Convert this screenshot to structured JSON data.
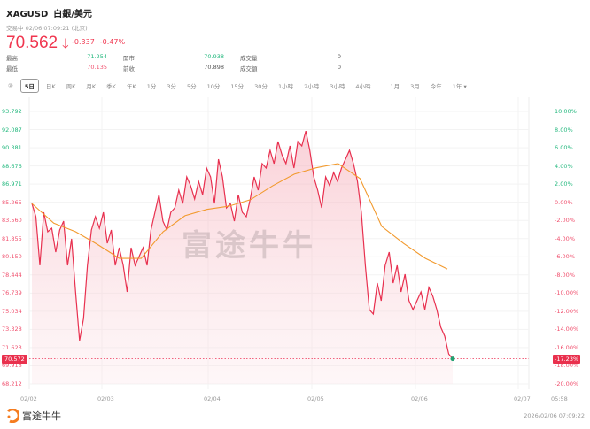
{
  "header": {
    "symbol": "XAGUSD",
    "name": "白銀/美元",
    "status": "交易中 02/06 07:09:21 (北京)",
    "price": "70.562",
    "arrow_icon": "arrow-down",
    "change": "-0.337",
    "change_pct": "-0.47%"
  },
  "stats": [
    {
      "label": "最高",
      "value": "71.254",
      "color": "green"
    },
    {
      "label": "開市",
      "value": "70.938",
      "color": "green"
    },
    {
      "label": "成交量",
      "value": "0",
      "color": "grey"
    },
    {
      "label": "最低",
      "value": "70.135",
      "color": "red"
    },
    {
      "label": "前收",
      "value": "70.898",
      "color": "grey"
    },
    {
      "label": "成交額",
      "value": "0",
      "color": "grey"
    }
  ],
  "tabs": [
    "⑩",
    "5日",
    "日K",
    "周K",
    "月K",
    "季K",
    "年K",
    "1分",
    "3分",
    "5分",
    "10分",
    "15分",
    "30分",
    "1小時",
    "2小時",
    "3小時",
    "4小時",
    "1月",
    "3月",
    "今年",
    "1年 ▾"
  ],
  "active_tab": "5日",
  "colors": {
    "up": "#20b77c",
    "down": "#f0506e",
    "line": "#e8304f",
    "ma": "#f29a2e"
  },
  "chart_data": {
    "type": "line",
    "y_ticks": [
      "93.792",
      "92.087",
      "90.381",
      "88.676",
      "86.971",
      "85.265",
      "83.560",
      "81.855",
      "80.150",
      "78.444",
      "76.739",
      "75.034",
      "73.328",
      "71.623",
      "69.918",
      "68.212"
    ],
    "pct_ticks": [
      "10.00%",
      "8.00%",
      "6.00%",
      "4.00%",
      "2.00%",
      "0.00%",
      "-2.00%",
      "-4.00%",
      "-6.00%",
      "-8.00%",
      "-10.00%",
      "-12.00%",
      "-14.00%",
      "-16.00%",
      "-18.00%",
      "-20.00%"
    ],
    "ylim": [
      68.212,
      93.792
    ],
    "x_ticks": [
      "02/02",
      "02/03",
      "02/04",
      "02/05",
      "02/06",
      "02/07",
      "05:58"
    ],
    "prev_close": 85.265,
    "current_price_label": "70.572",
    "current_pct_label": "-17.23%",
    "price_series": [
      85.15,
      83.91,
      79.34,
      84.32,
      82.5,
      82.83,
      80.59,
      82.66,
      83.49,
      79.34,
      81.83,
      76.85,
      72.28,
      74.36,
      79.34,
      82.66,
      83.91,
      82.83,
      84.32,
      81.42,
      82.66,
      79.34,
      81.0,
      79.34,
      76.85,
      81.0,
      79.34,
      80.17,
      81.0,
      79.34,
      82.66,
      84.32,
      85.98,
      83.49,
      82.66,
      84.32,
      84.74,
      86.4,
      85.15,
      87.65,
      86.82,
      85.57,
      87.23,
      85.98,
      88.48,
      87.65,
      85.15,
      89.31,
      87.65,
      84.74,
      85.15,
      83.49,
      85.98,
      84.32,
      83.91,
      85.57,
      87.65,
      86.4,
      88.89,
      88.48,
      90.14,
      88.89,
      90.97,
      89.72,
      88.89,
      90.55,
      88.48,
      90.97,
      90.55,
      91.96,
      90.14,
      87.65,
      86.4,
      84.74,
      87.65,
      86.82,
      88.06,
      87.23,
      88.48,
      89.31,
      90.14,
      88.89,
      87.23,
      84.32,
      79.34,
      75.19,
      74.77,
      77.68,
      76.02,
      79.34,
      80.59,
      77.68,
      79.34,
      76.85,
      78.51,
      76.02,
      75.19,
      76.02,
      76.85,
      75.19,
      77.27,
      76.44,
      75.19,
      73.53,
      72.7,
      71.03,
      70.57
    ],
    "ma_series": [
      85.15,
      83.3,
      82.5,
      81.3,
      80.0,
      80.0,
      82.5,
      84.0,
      84.6,
      84.9,
      85.5,
      86.8,
      87.9,
      88.5,
      88.9,
      87.5,
      83.0,
      81.4,
      80.0,
      79.0
    ]
  },
  "watermark": "富途牛牛",
  "footer": {
    "brand": "富途牛牛",
    "timestamp": "2026/02/06 07:09:22"
  }
}
